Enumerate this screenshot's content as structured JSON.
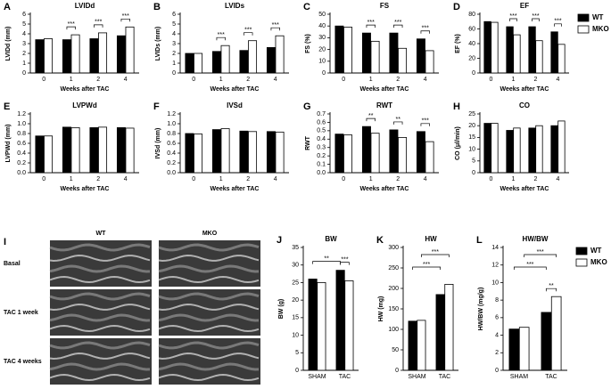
{
  "chart_data": [
    {
      "type": "bar",
      "letter": "A",
      "title": "LVIDd",
      "ylabel": "LVIDd (mm)",
      "xlabel": "Weeks after TAC",
      "categories": [
        "0",
        "1",
        "2",
        "4"
      ],
      "series": [
        {
          "name": "WT",
          "color": "#000000",
          "values": [
            3.4,
            3.4,
            3.5,
            3.8
          ]
        },
        {
          "name": "MKO",
          "color": "#ffffff",
          "values": [
            3.5,
            3.9,
            4.1,
            4.7
          ]
        }
      ],
      "ylim": [
        0,
        6
      ],
      "yticks": [
        0,
        1,
        2,
        3,
        4,
        5,
        6
      ],
      "significance": [
        null,
        "***",
        "***",
        "***"
      ]
    },
    {
      "type": "bar",
      "letter": "B",
      "title": "LVIDs",
      "ylabel": "LVIDs (mm)",
      "xlabel": "Weeks after TAC",
      "categories": [
        "0",
        "1",
        "2",
        "4"
      ],
      "series": [
        {
          "name": "WT",
          "color": "#000000",
          "values": [
            2.0,
            2.2,
            2.3,
            2.6
          ]
        },
        {
          "name": "MKO",
          "color": "#ffffff",
          "values": [
            2.0,
            2.8,
            3.3,
            3.8
          ]
        }
      ],
      "ylim": [
        0,
        6
      ],
      "yticks": [
        0,
        1,
        2,
        3,
        4,
        5,
        6
      ],
      "significance": [
        null,
        "***",
        "***",
        "***"
      ]
    },
    {
      "type": "bar",
      "letter": "C",
      "title": "FS",
      "ylabel": "FS (%)",
      "xlabel": "Weeks after TAC",
      "categories": [
        "0",
        "1",
        "2",
        "4"
      ],
      "series": [
        {
          "name": "WT",
          "color": "#000000",
          "values": [
            40,
            34,
            34,
            29
          ]
        },
        {
          "name": "MKO",
          "color": "#ffffff",
          "values": [
            39,
            27,
            21,
            19
          ]
        }
      ],
      "ylim": [
        0,
        50
      ],
      "yticks": [
        0,
        10,
        20,
        30,
        40,
        50
      ],
      "significance": [
        null,
        "***",
        "***",
        "***"
      ]
    },
    {
      "type": "bar",
      "letter": "D",
      "title": "EF",
      "ylabel": "EF (%)",
      "xlabel": "Weeks after TAC",
      "categories": [
        "0",
        "1",
        "2",
        "4"
      ],
      "series": [
        {
          "name": "WT",
          "color": "#000000",
          "values": [
            70,
            63,
            63,
            56
          ]
        },
        {
          "name": "MKO",
          "color": "#ffffff",
          "values": [
            69,
            52,
            44,
            39
          ]
        }
      ],
      "ylim": [
        0,
        80
      ],
      "yticks": [
        0,
        20,
        40,
        60,
        80
      ],
      "significance": [
        null,
        "***",
        "***",
        "***"
      ],
      "legend": "right"
    },
    {
      "type": "bar",
      "letter": "E",
      "title": "LVPWd",
      "ylabel": "LVPWd (mm)",
      "xlabel": "Weeks after TAC",
      "categories": [
        "0",
        "1",
        "2",
        "4"
      ],
      "series": [
        {
          "name": "WT",
          "color": "#000000",
          "values": [
            0.75,
            0.93,
            0.92,
            0.92
          ]
        },
        {
          "name": "MKO",
          "color": "#ffffff",
          "values": [
            0.75,
            0.92,
            0.93,
            0.91
          ]
        }
      ],
      "ylim": [
        0,
        1.2
      ],
      "yticks": [
        {
          "value": 0,
          "label": "0.0"
        },
        0.2,
        0.4,
        0.6,
        0.8,
        {
          "value": 1,
          "label": "1.0"
        },
        1.2
      ]
    },
    {
      "type": "bar",
      "letter": "F",
      "title": "IVSd",
      "ylabel": "IVSd (mm)",
      "xlabel": "Weeks after TAC",
      "categories": [
        "0",
        "1",
        "2",
        "4"
      ],
      "series": [
        {
          "name": "WT",
          "color": "#000000",
          "values": [
            0.8,
            0.88,
            0.85,
            0.84
          ]
        },
        {
          "name": "MKO",
          "color": "#ffffff",
          "values": [
            0.79,
            0.9,
            0.84,
            0.83
          ]
        }
      ],
      "ylim": [
        0,
        1.2
      ],
      "yticks": [
        {
          "value": 0,
          "label": "0.0"
        },
        0.2,
        0.4,
        0.6,
        0.8,
        {
          "value": 1,
          "label": "1.0"
        },
        1.2
      ]
    },
    {
      "type": "bar",
      "letter": "G",
      "title": "RWT",
      "ylabel": "RWT",
      "xlabel": "Weeks after TAC",
      "categories": [
        "0",
        "1",
        "2",
        "4"
      ],
      "series": [
        {
          "name": "WT",
          "color": "#000000",
          "values": [
            0.46,
            0.55,
            0.51,
            0.49
          ]
        },
        {
          "name": "MKO",
          "color": "#ffffff",
          "values": [
            0.45,
            0.47,
            0.42,
            0.37
          ]
        }
      ],
      "ylim": [
        0,
        0.7
      ],
      "yticks": [
        {
          "value": 0,
          "label": "0.0"
        },
        0.1,
        0.2,
        0.3,
        0.4,
        0.5,
        0.6,
        0.7
      ],
      "significance": [
        null,
        "**",
        "**",
        "***"
      ]
    },
    {
      "type": "bar",
      "letter": "H",
      "title": "CO",
      "ylabel": "CO (μl/min)",
      "xlabel": "Weeks after TAC",
      "categories": [
        "0",
        "1",
        "2",
        "4"
      ],
      "series": [
        {
          "name": "WT",
          "color": "#000000",
          "values": [
            21,
            18,
            19,
            20
          ]
        },
        {
          "name": "MKO",
          "color": "#ffffff",
          "values": [
            21,
            19,
            20,
            22
          ]
        }
      ],
      "ylim": [
        0,
        25
      ],
      "yticks": [
        0,
        5,
        10,
        15,
        20,
        25
      ]
    },
    {
      "type": "bar",
      "letter": "J",
      "title": "BW",
      "ylabel": "BW (g)",
      "categories": [
        "SHAM",
        "TAC"
      ],
      "series": [
        {
          "name": "WT",
          "color": "#000000",
          "values": [
            26,
            28.5
          ]
        },
        {
          "name": "MKO",
          "color": "#ffffff",
          "values": [
            25,
            25.5
          ]
        }
      ],
      "ylim": [
        0,
        35
      ],
      "yticks": [
        0,
        5,
        10,
        15,
        20,
        25,
        30,
        35
      ],
      "significance": [
        null,
        "***"
      ],
      "series_significance": [
        "**",
        null
      ]
    },
    {
      "type": "bar",
      "letter": "K",
      "title": "HW",
      "ylabel": "HW (mg)",
      "categories": [
        "SHAM",
        "TAC"
      ],
      "series": [
        {
          "name": "WT",
          "color": "#000000",
          "values": [
            120,
            185
          ]
        },
        {
          "name": "MKO",
          "color": "#ffffff",
          "values": [
            122,
            210
          ]
        }
      ],
      "ylim": [
        0,
        300
      ],
      "yticks": [
        0,
        50,
        100,
        150,
        200,
        250,
        300
      ],
      "series_significance": [
        "***",
        "***"
      ]
    },
    {
      "type": "bar",
      "letter": "L",
      "title": "HW/BW",
      "ylabel": "HW/BW (mg/g)",
      "categories": [
        "SHAM",
        "TAC"
      ],
      "series": [
        {
          "name": "WT",
          "color": "#000000",
          "values": [
            4.7,
            6.6
          ]
        },
        {
          "name": "MKO",
          "color": "#ffffff",
          "values": [
            4.9,
            8.4
          ]
        }
      ],
      "ylim": [
        0,
        14
      ],
      "yticks": [
        0,
        2,
        4,
        6,
        8,
        10,
        12,
        14
      ],
      "significance": [
        null,
        "**"
      ],
      "series_significance": [
        "***",
        "***"
      ],
      "legend": "right"
    }
  ],
  "echo": {
    "letter": "I",
    "columns": [
      "WT",
      "MKO"
    ],
    "rows": [
      "Basal",
      "TAC 1 week",
      "TAC 4 weeks"
    ]
  }
}
